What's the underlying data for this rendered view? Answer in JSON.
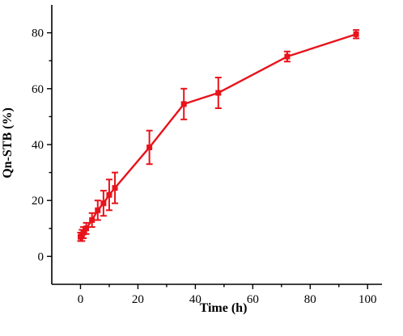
{
  "chart_data": {
    "type": "line",
    "title": "",
    "xlabel": "Time (h)",
    "ylabel": "Qn-STB (%)",
    "xlim": [
      -10,
      105
    ],
    "ylim": [
      -10,
      90
    ],
    "xticks": [
      0,
      20,
      40,
      60,
      80,
      100
    ],
    "yticks": [
      0,
      20,
      40,
      60,
      80
    ],
    "grid": false,
    "legend": "none",
    "series": [
      {
        "color": "#e8131b",
        "marker": "square",
        "x": [
          0,
          0.5,
          1,
          2,
          4,
          6,
          8,
          10,
          12,
          24,
          36,
          48,
          72,
          96
        ],
        "y": [
          7,
          7.5,
          8.5,
          10,
          13,
          16.5,
          19,
          22,
          24.5,
          39,
          54.5,
          58.5,
          71.5,
          79.5
        ],
        "error": [
          1.5,
          2,
          2,
          2,
          2.5,
          3.5,
          4.5,
          5.5,
          5.5,
          6,
          5.5,
          5.5,
          1.8,
          1.5
        ]
      }
    ]
  }
}
